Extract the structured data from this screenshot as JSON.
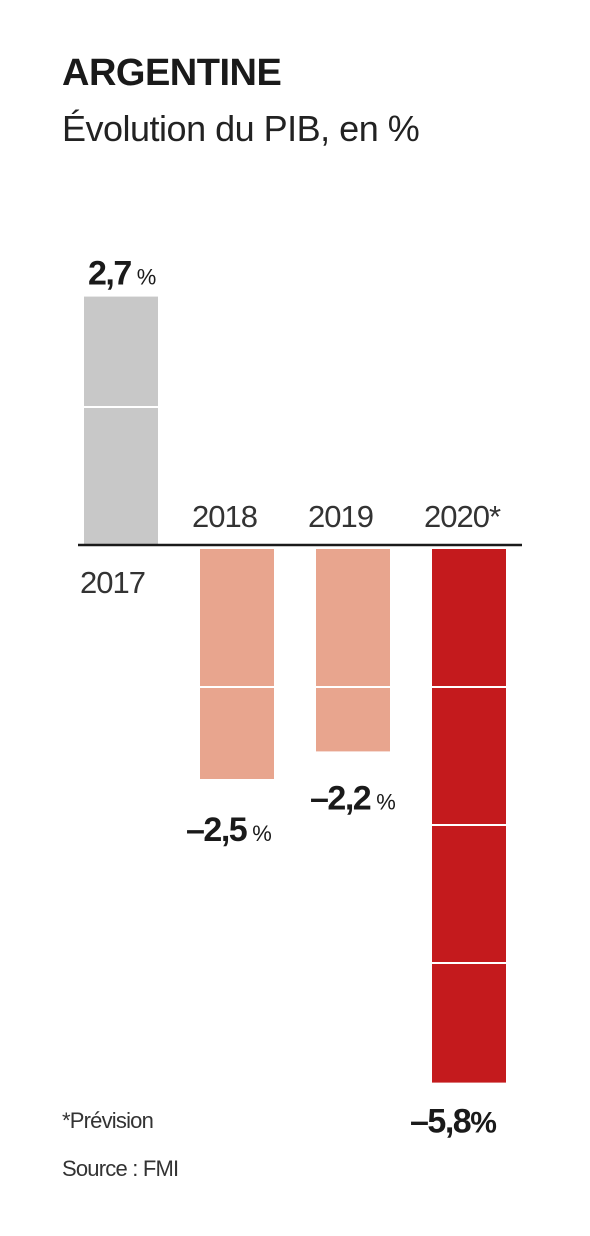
{
  "title": "ARGENTINE",
  "subtitle": "Évolution du PIB, en %",
  "footnote": "*Prévision",
  "source": "Source : FMI",
  "colors": {
    "past_positive": "#c8c8c8",
    "past_negative": "#e8a58e",
    "forecast": "#c41a1d",
    "axis": "#1a1a1a"
  },
  "chart_data": {
    "type": "bar",
    "title": "ARGENTINE",
    "subtitle": "Évolution du PIB, en %",
    "categories": [
      "2017",
      "2018",
      "2019",
      "2020*"
    ],
    "values": [
      2.7,
      -2.5,
      -2.2,
      -5.8
    ],
    "value_labels": [
      "2,7",
      "–2,5",
      "–2,2",
      "–5,8"
    ],
    "unit": "%",
    "forecast": [
      false,
      false,
      false,
      true
    ],
    "ylim": [
      -5.8,
      2.7
    ],
    "grid": "1-unit segment lines inside bars",
    "legend": "none"
  }
}
